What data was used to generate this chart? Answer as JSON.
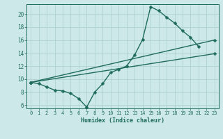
{
  "xlabel": "Humidex (Indice chaleur)",
  "bg_color": "#cce8e8",
  "line_color": "#1f6b5e",
  "xlim": [
    -0.5,
    23.5
  ],
  "ylim": [
    5.5,
    21.5
  ],
  "xticks": [
    0,
    1,
    2,
    3,
    4,
    5,
    6,
    7,
    8,
    9,
    10,
    11,
    12,
    13,
    14,
    15,
    16,
    17,
    18,
    19,
    20,
    21,
    22,
    23
  ],
  "yticks": [
    6,
    8,
    10,
    12,
    14,
    16,
    18,
    20
  ],
  "line1_x": [
    0,
    1,
    2,
    3,
    4,
    5,
    6,
    7,
    8,
    9,
    10,
    11,
    12,
    13,
    14,
    15,
    16,
    17,
    18,
    19,
    20,
    21
  ],
  "line1_y": [
    9.5,
    9.3,
    8.8,
    8.3,
    8.2,
    7.8,
    7.0,
    5.7,
    8.0,
    9.3,
    11.0,
    11.5,
    12.0,
    13.7,
    16.1,
    21.1,
    20.5,
    19.5,
    18.6,
    17.4,
    16.4,
    15.0
  ],
  "line2_x": [
    0,
    23
  ],
  "line2_y": [
    9.5,
    13.9
  ],
  "line3_x": [
    0,
    23
  ],
  "line3_y": [
    9.5,
    16.0
  ],
  "markersize": 2.5,
  "linewidth": 1.0,
  "grid_color": "#aacece",
  "tick_color": "#1f6b5e",
  "label_fontsize": 5.0,
  "xlabel_fontsize": 6.0
}
